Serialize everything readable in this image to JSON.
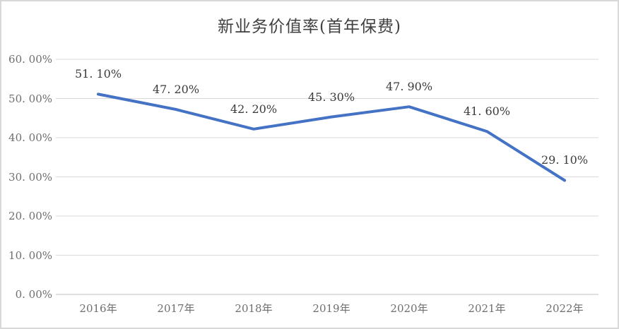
{
  "window": {
    "background": "#FFFFFF",
    "border_color": "#D8D8D8"
  },
  "chart_data": {
    "type": "line",
    "title": "新业务价值率(首年保费)",
    "categories": [
      "2016年",
      "2017年",
      "2018年",
      "2019年",
      "2020年",
      "2021年",
      "2022年"
    ],
    "values": [
      51.1,
      47.2,
      42.2,
      45.3,
      47.9,
      41.6,
      29.1
    ],
    "data_labels": [
      "51. 10%",
      "47. 20%",
      "42. 20%",
      "45. 30%",
      "47. 90%",
      "41. 60%",
      "29. 10%"
    ],
    "y_tick_labels": [
      "60. 00%",
      "50. 00%",
      "40. 00%",
      "30. 00%",
      "20. 00%",
      "10. 00%",
      "0. 00%"
    ],
    "y_tick_values": [
      60,
      50,
      40,
      30,
      20,
      10,
      0
    ],
    "xlabel": "",
    "ylabel": "",
    "ylim": [
      0,
      60
    ],
    "grid": true,
    "legend": "none",
    "colors": {
      "line": "#4472C4",
      "gridline": "#D9D9D9",
      "axis_line": "#BFBFBF",
      "axis_text": "#6E6E6E",
      "data_label_text": "#3B3B3B",
      "title_text": "#404040"
    }
  }
}
